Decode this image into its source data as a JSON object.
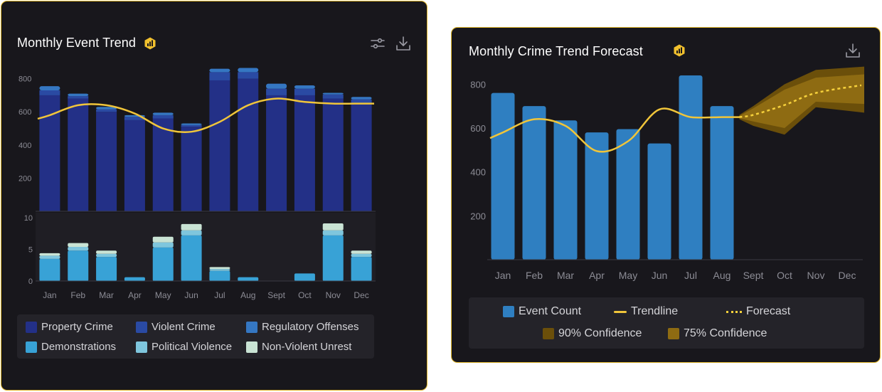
{
  "colors": {
    "property": "#233087",
    "violent": "#2a4aa3",
    "regulatory": "#3577c2",
    "demonstrations": "#38a2d6",
    "political": "#7fc6dd",
    "nonviolent": "#c9e3d4",
    "trend": "#f0c53a",
    "event": "#2f7fc1",
    "ci90": "#6b4f0a",
    "ci75": "#8e6b12",
    "badge": "#f2c12e"
  },
  "card1": {
    "title": "Monthly Event Trend",
    "icons": {
      "badge": "chart-badge-icon",
      "filter": "filter-sliders-icon",
      "download": "download-icon"
    },
    "legend": [
      {
        "label": "Property Crime",
        "color": "#233087"
      },
      {
        "label": "Violent Crime",
        "color": "#2a4aa3"
      },
      {
        "label": "Regulatory Offenses",
        "color": "#3577c2"
      },
      {
        "label": "Demonstrations",
        "color": "#38a2d6"
      },
      {
        "label": "Political Violence",
        "color": "#7fc6dd"
      },
      {
        "label": "Non-Violent Unrest",
        "color": "#c9e3d4"
      }
    ]
  },
  "card2": {
    "title": "Monthly Crime Trend Forecast",
    "icons": {
      "badge": "chart-badge-icon",
      "download": "download-icon"
    },
    "legend": {
      "event": "Event Count",
      "trend": "Trendline",
      "forecast": "Forecast",
      "ci90": "90% Confidence",
      "ci75": "75% Confidence"
    }
  },
  "chart_data": [
    {
      "type": "bar",
      "title": "Monthly Event Trend",
      "panel": "upper",
      "stacked": true,
      "categories": [
        "Jan",
        "Feb",
        "Mar",
        "Apr",
        "May",
        "Jun",
        "Jul",
        "Aug",
        "Sept",
        "Oct",
        "Nov",
        "Dec"
      ],
      "series": [
        {
          "name": "Property Crime",
          "values": [
            700,
            680,
            600,
            550,
            560,
            510,
            790,
            800,
            700,
            700,
            680,
            650
          ]
        },
        {
          "name": "Violent Crime",
          "values": [
            30,
            15,
            15,
            20,
            20,
            10,
            50,
            40,
            40,
            40,
            25,
            25
          ]
        },
        {
          "name": "Regulatory Offenses",
          "values": [
            25,
            15,
            15,
            10,
            15,
            10,
            20,
            25,
            30,
            20,
            10,
            15
          ]
        }
      ],
      "trendline": [
        580,
        640,
        640,
        590,
        500,
        480,
        540,
        640,
        680,
        660,
        650,
        650
      ],
      "yticks": [
        200,
        400,
        600,
        800
      ],
      "ylim": [
        0,
        880
      ]
    },
    {
      "type": "bar",
      "title": "Monthly Event Trend",
      "panel": "lower",
      "stacked": true,
      "categories": [
        "Jan",
        "Feb",
        "Mar",
        "Apr",
        "May",
        "Jun",
        "Jul",
        "Aug",
        "Sept",
        "Oct",
        "Nov",
        "Dec"
      ],
      "series": [
        {
          "name": "Demonstrations",
          "values": [
            3.5,
            4.8,
            3.8,
            0.6,
            5.3,
            7.2,
            1.6,
            0.6,
            0,
            1.2,
            7.2,
            3.8
          ]
        },
        {
          "name": "Political Violence",
          "values": [
            0.5,
            0.6,
            0.5,
            0,
            0.8,
            0.8,
            0.3,
            0,
            0,
            0,
            0.8,
            0.5
          ]
        },
        {
          "name": "Non-Violent Unrest",
          "values": [
            0.4,
            0.6,
            0.5,
            0,
            0.9,
            1.0,
            0.3,
            0,
            0,
            0,
            1.1,
            0.5
          ]
        }
      ],
      "yticks": [
        0,
        5,
        10
      ],
      "ylim": [
        0,
        10
      ]
    },
    {
      "type": "bar",
      "title": "Monthly Crime Trend Forecast",
      "categories": [
        "Jan",
        "Feb",
        "Mar",
        "Apr",
        "May",
        "Jun",
        "Jul",
        "Aug",
        "Sept",
        "Oct",
        "Nov",
        "Dec"
      ],
      "series": [
        {
          "name": "Event Count",
          "values": [
            760,
            700,
            635,
            580,
            595,
            530,
            840,
            700,
            null,
            null,
            null,
            null
          ]
        }
      ],
      "trendline": [
        580,
        640,
        610,
        495,
        540,
        685,
        650
      ],
      "trend_x": [
        0,
        1,
        2,
        3,
        4,
        5,
        6,
        7
      ],
      "trendline_full": [
        580,
        640,
        610,
        495,
        540,
        685,
        650,
        650
      ],
      "forecast": {
        "x": [
          "Aug",
          "Sept",
          "Oct",
          "Nov",
          "Dec"
        ],
        "values": [
          650,
          660,
          705,
          760,
          795
        ]
      },
      "ci90": {
        "upper": [
          660,
          700,
          800,
          865,
          880
        ],
        "lower": [
          640,
          610,
          570,
          695,
          670
        ]
      },
      "ci75": {
        "upper": [
          655,
          690,
          775,
          830,
          845
        ],
        "lower": [
          645,
          630,
          600,
          720,
          710
        ]
      },
      "yticks": [
        200,
        400,
        600,
        800
      ],
      "ylim": [
        0,
        960
      ]
    }
  ]
}
